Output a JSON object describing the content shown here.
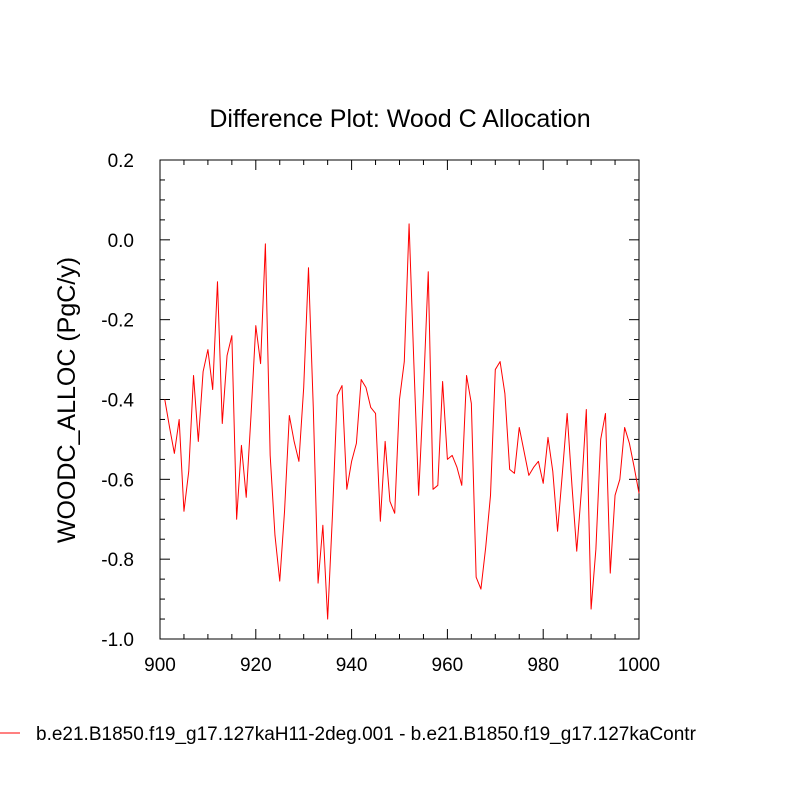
{
  "chart_data": {
    "type": "line",
    "title": "Difference Plot: Wood C Allocation",
    "xlabel": "",
    "ylabel": "WOODC_ALLOC  (PgC/y)",
    "xlim": [
      900,
      1000
    ],
    "ylim": [
      -1.0,
      0.2
    ],
    "x_ticks": [
      900,
      920,
      940,
      960,
      980,
      1000
    ],
    "x_tick_labels": [
      "900",
      "920",
      "940",
      "960",
      "980",
      "1000"
    ],
    "y_ticks": [
      0.2,
      0.0,
      -0.2,
      -0.4,
      -0.6,
      -0.8,
      -1.0
    ],
    "y_tick_labels": [
      "0.2",
      "0.0",
      "-0.2",
      "-0.4",
      "-0.6",
      "-0.8",
      "-1.0"
    ],
    "grid": false,
    "legend_position": "bottom",
    "series": [
      {
        "name": "b.e21.B1850.f19_g17.127kaH11-2deg.001 - b.e21.B1850.f19_g17.127kaContr",
        "color": "#ff0000",
        "x": [
          901,
          902,
          903,
          904,
          905,
          906,
          907,
          908,
          909,
          910,
          911,
          912,
          913,
          914,
          915,
          916,
          917,
          918,
          919,
          920,
          921,
          922,
          923,
          924,
          925,
          926,
          927,
          928,
          929,
          930,
          931,
          932,
          933,
          934,
          935,
          936,
          937,
          938,
          939,
          940,
          941,
          942,
          943,
          944,
          945,
          946,
          947,
          948,
          949,
          950,
          951,
          952,
          953,
          954,
          955,
          956,
          957,
          958,
          959,
          960,
          961,
          962,
          963,
          964,
          965,
          966,
          967,
          968,
          969,
          970,
          971,
          972,
          973,
          974,
          975,
          976,
          977,
          978,
          979,
          980,
          981,
          982,
          983,
          984,
          985,
          986,
          987,
          988,
          989,
          990,
          991,
          992,
          993,
          994,
          995,
          996,
          997,
          998,
          999,
          1000
        ],
        "y": [
          -0.4,
          -0.47,
          -0.535,
          -0.45,
          -0.68,
          -0.58,
          -0.34,
          -0.505,
          -0.33,
          -0.275,
          -0.375,
          -0.105,
          -0.46,
          -0.29,
          -0.24,
          -0.7,
          -0.515,
          -0.645,
          -0.44,
          -0.215,
          -0.31,
          -0.01,
          -0.54,
          -0.74,
          -0.855,
          -0.68,
          -0.44,
          -0.505,
          -0.555,
          -0.37,
          -0.07,
          -0.42,
          -0.86,
          -0.715,
          -0.95,
          -0.69,
          -0.39,
          -0.365,
          -0.625,
          -0.555,
          -0.51,
          -0.35,
          -0.37,
          -0.42,
          -0.435,
          -0.705,
          -0.505,
          -0.655,
          -0.685,
          -0.4,
          -0.305,
          0.04,
          -0.31,
          -0.64,
          -0.38,
          -0.08,
          -0.625,
          -0.615,
          -0.355,
          -0.55,
          -0.54,
          -0.57,
          -0.615,
          -0.34,
          -0.41,
          -0.845,
          -0.875,
          -0.77,
          -0.64,
          -0.325,
          -0.305,
          -0.385,
          -0.575,
          -0.585,
          -0.47,
          -0.53,
          -0.59,
          -0.57,
          -0.555,
          -0.61,
          -0.495,
          -0.58,
          -0.73,
          -0.585,
          -0.435,
          -0.615,
          -0.78,
          -0.625,
          -0.425,
          -0.925,
          -0.775,
          -0.5,
          -0.435,
          -0.835,
          -0.64,
          -0.6,
          -0.47,
          -0.51,
          -0.57,
          -0.635
        ]
      }
    ]
  }
}
